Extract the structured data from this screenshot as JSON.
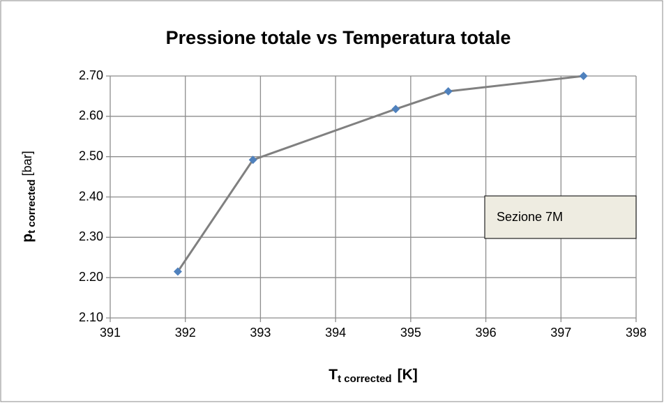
{
  "chart_data": {
    "type": "line",
    "title": "Pressione totale  vs Temperatura totale",
    "x_label": {
      "main": "T",
      "sub": "t corrected",
      "unit": "[K]"
    },
    "y_label": {
      "main": "p",
      "sub": "t corrected",
      "unit": "[bar]"
    },
    "annotation": "Sezione 7M",
    "x": [
      391.9,
      392.9,
      394.8,
      395.5,
      397.3
    ],
    "series": [
      {
        "name": "Sezione 7M",
        "line_color": "#808080",
        "color": "#4f81bd",
        "values": [
          2.215,
          2.492,
          2.618,
          2.662,
          2.7
        ]
      }
    ],
    "xlim": [
      391,
      398
    ],
    "xticks": [
      391,
      392,
      393,
      394,
      395,
      396,
      397,
      398
    ],
    "ylim": [
      2.1,
      2.7
    ],
    "yticks": [
      {
        "value": 2.1,
        "label": "2.10"
      },
      {
        "value": 2.2,
        "label": "2.20"
      },
      {
        "value": 2.3,
        "label": "2.30"
      },
      {
        "value": 2.4,
        "label": "2.40"
      },
      {
        "value": 2.5,
        "label": "2.50"
      },
      {
        "value": 2.6,
        "label": "2.60"
      },
      {
        "value": 2.7,
        "label": "2.70"
      }
    ],
    "grid": true
  }
}
